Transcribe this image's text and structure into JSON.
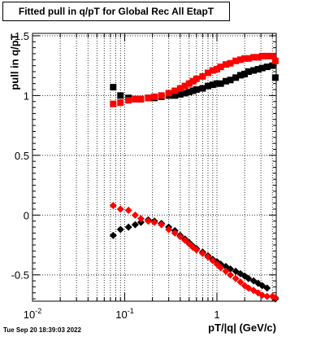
{
  "chart_data": {
    "type": "scatter",
    "title": "Fitted pull in q/pT for Global Rec All EtapT",
    "xlabel": "pT/|q| (GeV/c)",
    "ylabel": "pull in q/pT",
    "xscale": "log",
    "xlim": [
      0.01,
      4.4
    ],
    "ylim": [
      -0.72,
      1.52
    ],
    "grid": true,
    "x_tick_labels": [
      "10^-2",
      "10^-1",
      "1"
    ],
    "y_tick_labels": [
      "1.5",
      "1",
      "0.5",
      "0",
      "-0.5"
    ],
    "series": [
      {
        "marker": "square",
        "color": "#000000",
        "points": [
          [
            0.075,
            1.07
          ],
          [
            0.09,
            1.0
          ],
          [
            0.11,
            0.98
          ],
          [
            0.13,
            0.97
          ],
          [
            0.15,
            0.97
          ],
          [
            0.18,
            0.98
          ],
          [
            0.21,
            0.98
          ],
          [
            0.25,
            0.99
          ],
          [
            0.3,
            1.0
          ],
          [
            0.35,
            1.0
          ],
          [
            0.4,
            1.01
          ],
          [
            0.45,
            1.02
          ],
          [
            0.5,
            1.03
          ],
          [
            0.55,
            1.04
          ],
          [
            0.6,
            1.05
          ],
          [
            0.7,
            1.06
          ],
          [
            0.8,
            1.08
          ],
          [
            0.9,
            1.09
          ],
          [
            1.0,
            1.1
          ],
          [
            1.1,
            1.1
          ],
          [
            1.25,
            1.12
          ],
          [
            1.4,
            1.13
          ],
          [
            1.6,
            1.15
          ],
          [
            1.8,
            1.17
          ],
          [
            2.0,
            1.18
          ],
          [
            2.2,
            1.2
          ],
          [
            2.5,
            1.21
          ],
          [
            2.8,
            1.22
          ],
          [
            3.1,
            1.23
          ],
          [
            3.5,
            1.24
          ],
          [
            4.0,
            1.25
          ],
          [
            4.3,
            1.15
          ]
        ]
      },
      {
        "marker": "square",
        "color": "#ff0000",
        "points": [
          [
            0.075,
            0.93
          ],
          [
            0.09,
            0.94
          ],
          [
            0.11,
            0.96
          ],
          [
            0.13,
            0.97
          ],
          [
            0.15,
            0.97
          ],
          [
            0.18,
            0.98
          ],
          [
            0.21,
            0.99
          ],
          [
            0.25,
            1.0
          ],
          [
            0.3,
            1.02
          ],
          [
            0.35,
            1.04
          ],
          [
            0.4,
            1.06
          ],
          [
            0.45,
            1.08
          ],
          [
            0.5,
            1.1
          ],
          [
            0.55,
            1.12
          ],
          [
            0.6,
            1.14
          ],
          [
            0.7,
            1.16
          ],
          [
            0.8,
            1.19
          ],
          [
            0.9,
            1.21
          ],
          [
            1.0,
            1.22
          ],
          [
            1.1,
            1.24
          ],
          [
            1.25,
            1.26
          ],
          [
            1.4,
            1.27
          ],
          [
            1.6,
            1.29
          ],
          [
            1.8,
            1.3
          ],
          [
            2.0,
            1.31
          ],
          [
            2.2,
            1.31
          ],
          [
            2.5,
            1.32
          ],
          [
            2.8,
            1.32
          ],
          [
            3.1,
            1.33
          ],
          [
            3.5,
            1.33
          ],
          [
            4.0,
            1.33
          ],
          [
            4.3,
            1.29
          ]
        ]
      },
      {
        "marker": "diamond",
        "color": "#000000",
        "points": [
          [
            0.075,
            -0.17
          ],
          [
            0.09,
            -0.12
          ],
          [
            0.11,
            -0.1
          ],
          [
            0.13,
            -0.08
          ],
          [
            0.15,
            -0.06
          ],
          [
            0.18,
            -0.04
          ],
          [
            0.21,
            -0.05
          ],
          [
            0.25,
            -0.07
          ],
          [
            0.3,
            -0.1
          ],
          [
            0.35,
            -0.13
          ],
          [
            0.4,
            -0.17
          ],
          [
            0.45,
            -0.2
          ],
          [
            0.5,
            -0.23
          ],
          [
            0.55,
            -0.26
          ],
          [
            0.6,
            -0.28
          ],
          [
            0.7,
            -0.31
          ],
          [
            0.8,
            -0.34
          ],
          [
            0.9,
            -0.37
          ],
          [
            1.0,
            -0.39
          ],
          [
            1.1,
            -0.41
          ],
          [
            1.25,
            -0.43
          ],
          [
            1.4,
            -0.45
          ],
          [
            1.6,
            -0.47
          ],
          [
            1.8,
            -0.49
          ],
          [
            2.0,
            -0.51
          ],
          [
            2.2,
            -0.53
          ],
          [
            2.5,
            -0.55
          ],
          [
            2.8,
            -0.57
          ],
          [
            3.1,
            -0.59
          ],
          [
            3.5,
            -0.61
          ],
          [
            4.3,
            -0.7
          ]
        ]
      },
      {
        "marker": "diamond",
        "color": "#ff0000",
        "points": [
          [
            0.075,
            0.08
          ],
          [
            0.09,
            0.05
          ],
          [
            0.11,
            0.04
          ],
          [
            0.13,
            0.0
          ],
          [
            0.15,
            -0.03
          ],
          [
            0.18,
            -0.05
          ],
          [
            0.21,
            -0.06
          ],
          [
            0.25,
            -0.08
          ],
          [
            0.3,
            -0.12
          ],
          [
            0.35,
            -0.15
          ],
          [
            0.4,
            -0.18
          ],
          [
            0.45,
            -0.21
          ],
          [
            0.5,
            -0.24
          ],
          [
            0.55,
            -0.27
          ],
          [
            0.6,
            -0.29
          ],
          [
            0.7,
            -0.32
          ],
          [
            0.8,
            -0.35
          ],
          [
            0.9,
            -0.38
          ],
          [
            1.0,
            -0.41
          ],
          [
            1.1,
            -0.44
          ],
          [
            1.25,
            -0.47
          ],
          [
            1.4,
            -0.5
          ],
          [
            1.6,
            -0.53
          ],
          [
            1.8,
            -0.56
          ],
          [
            2.0,
            -0.59
          ],
          [
            2.2,
            -0.61
          ],
          [
            2.5,
            -0.63
          ],
          [
            2.8,
            -0.65
          ],
          [
            3.1,
            -0.67
          ],
          [
            3.5,
            -0.68
          ],
          [
            4.0,
            -0.68
          ],
          [
            4.3,
            -0.69
          ]
        ]
      }
    ]
  },
  "footer": {
    "datestamp": "Tue Sep 20 18:39:03 2022"
  }
}
